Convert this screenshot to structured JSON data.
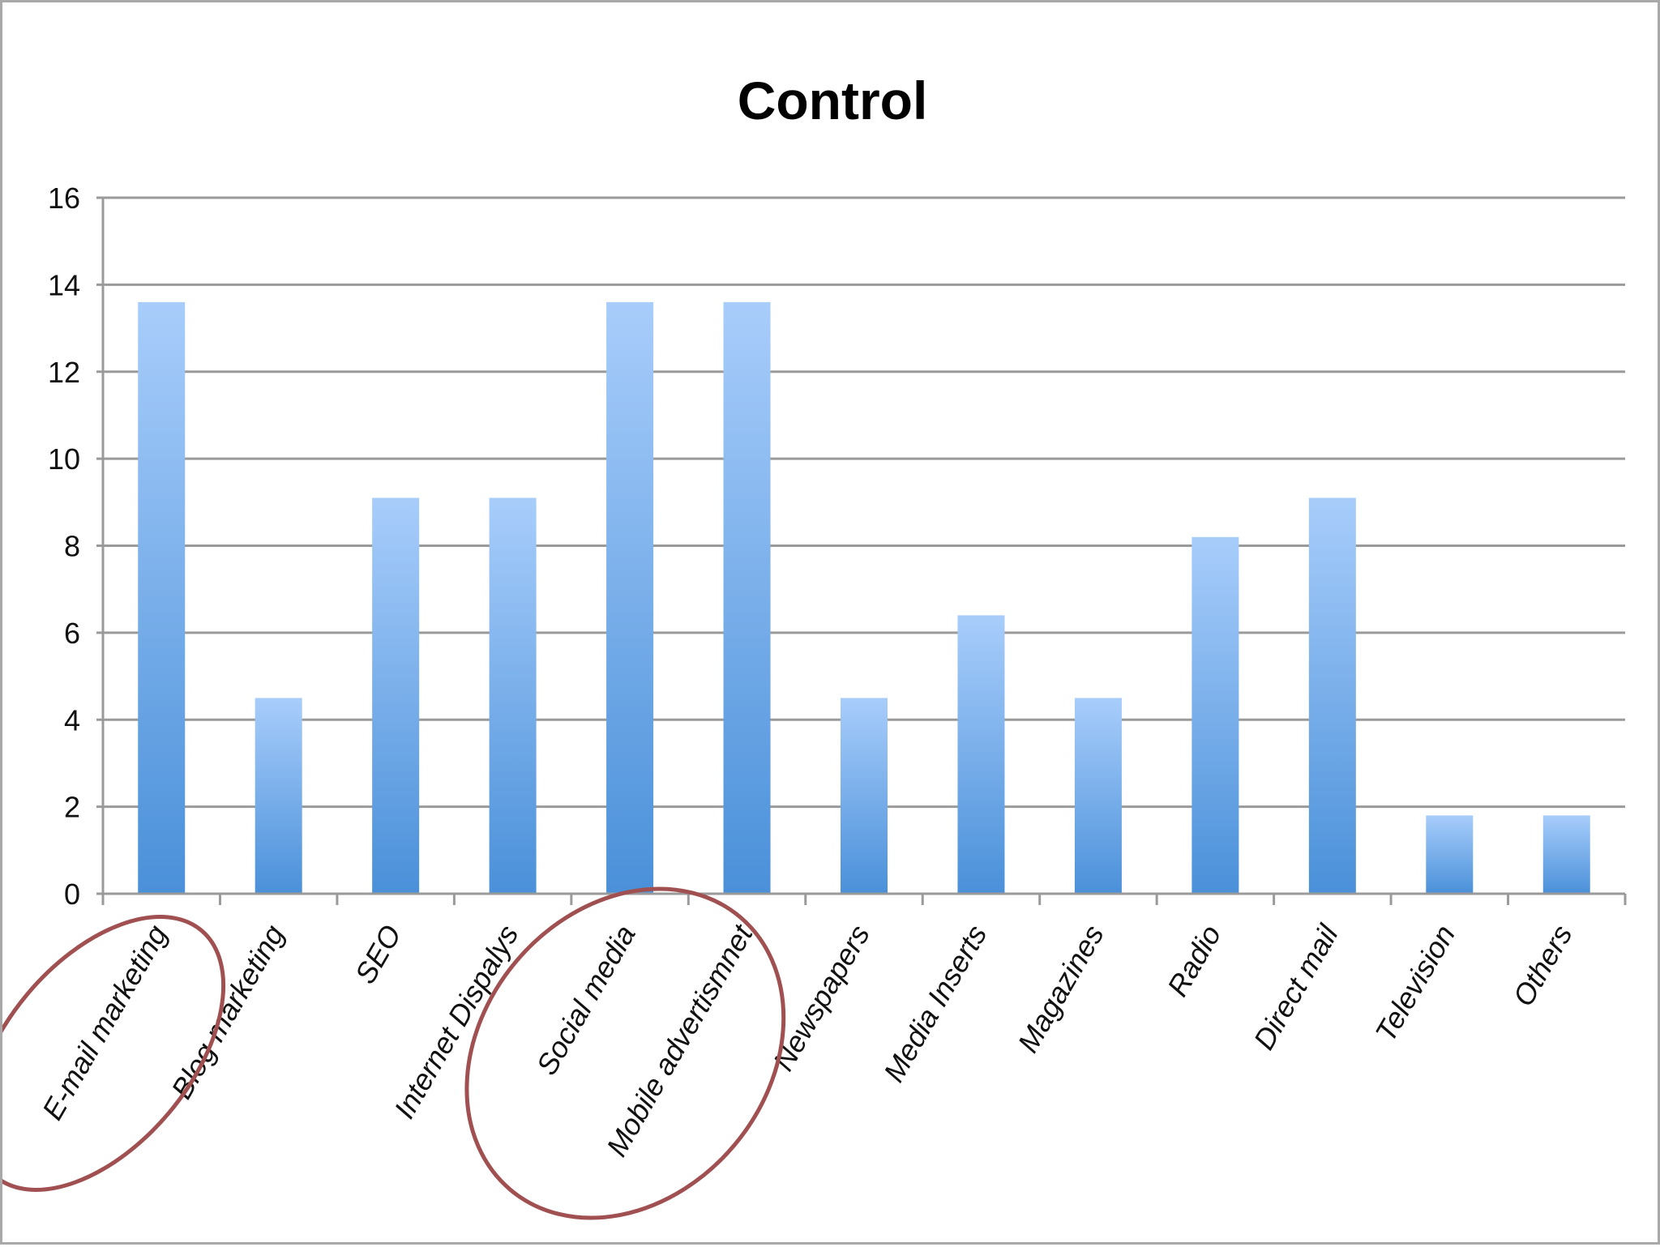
{
  "chart_data": {
    "type": "bar",
    "title": "Control",
    "xlabel": "",
    "ylabel": "",
    "ylim": [
      0,
      16
    ],
    "yticks": [
      0,
      2,
      4,
      6,
      8,
      10,
      12,
      14,
      16
    ],
    "grid": true,
    "legend": "none",
    "categories": [
      "E-mail marketing",
      "Blog marketing",
      "SEO",
      "Internet Dispalys",
      "Social media",
      "Mobile advertismnet",
      "Newspapers",
      "Media Inserts",
      "Magazines",
      "Radio",
      "Direct mail",
      "Television",
      "Others"
    ],
    "values": [
      13.6,
      4.5,
      9.1,
      9.1,
      13.6,
      13.6,
      4.5,
      6.4,
      4.5,
      8.2,
      9.1,
      1.8,
      1.8
    ],
    "bar_color_top": "#a8cdfb",
    "bar_color_bottom": "#4a90d9",
    "annotations": [
      {
        "type": "ellipse",
        "color": "#a05050",
        "categories": [
          "E-mail marketing"
        ]
      },
      {
        "type": "ellipse",
        "color": "#a05050",
        "categories": [
          "Social media",
          "Mobile advertismnet"
        ]
      }
    ]
  }
}
